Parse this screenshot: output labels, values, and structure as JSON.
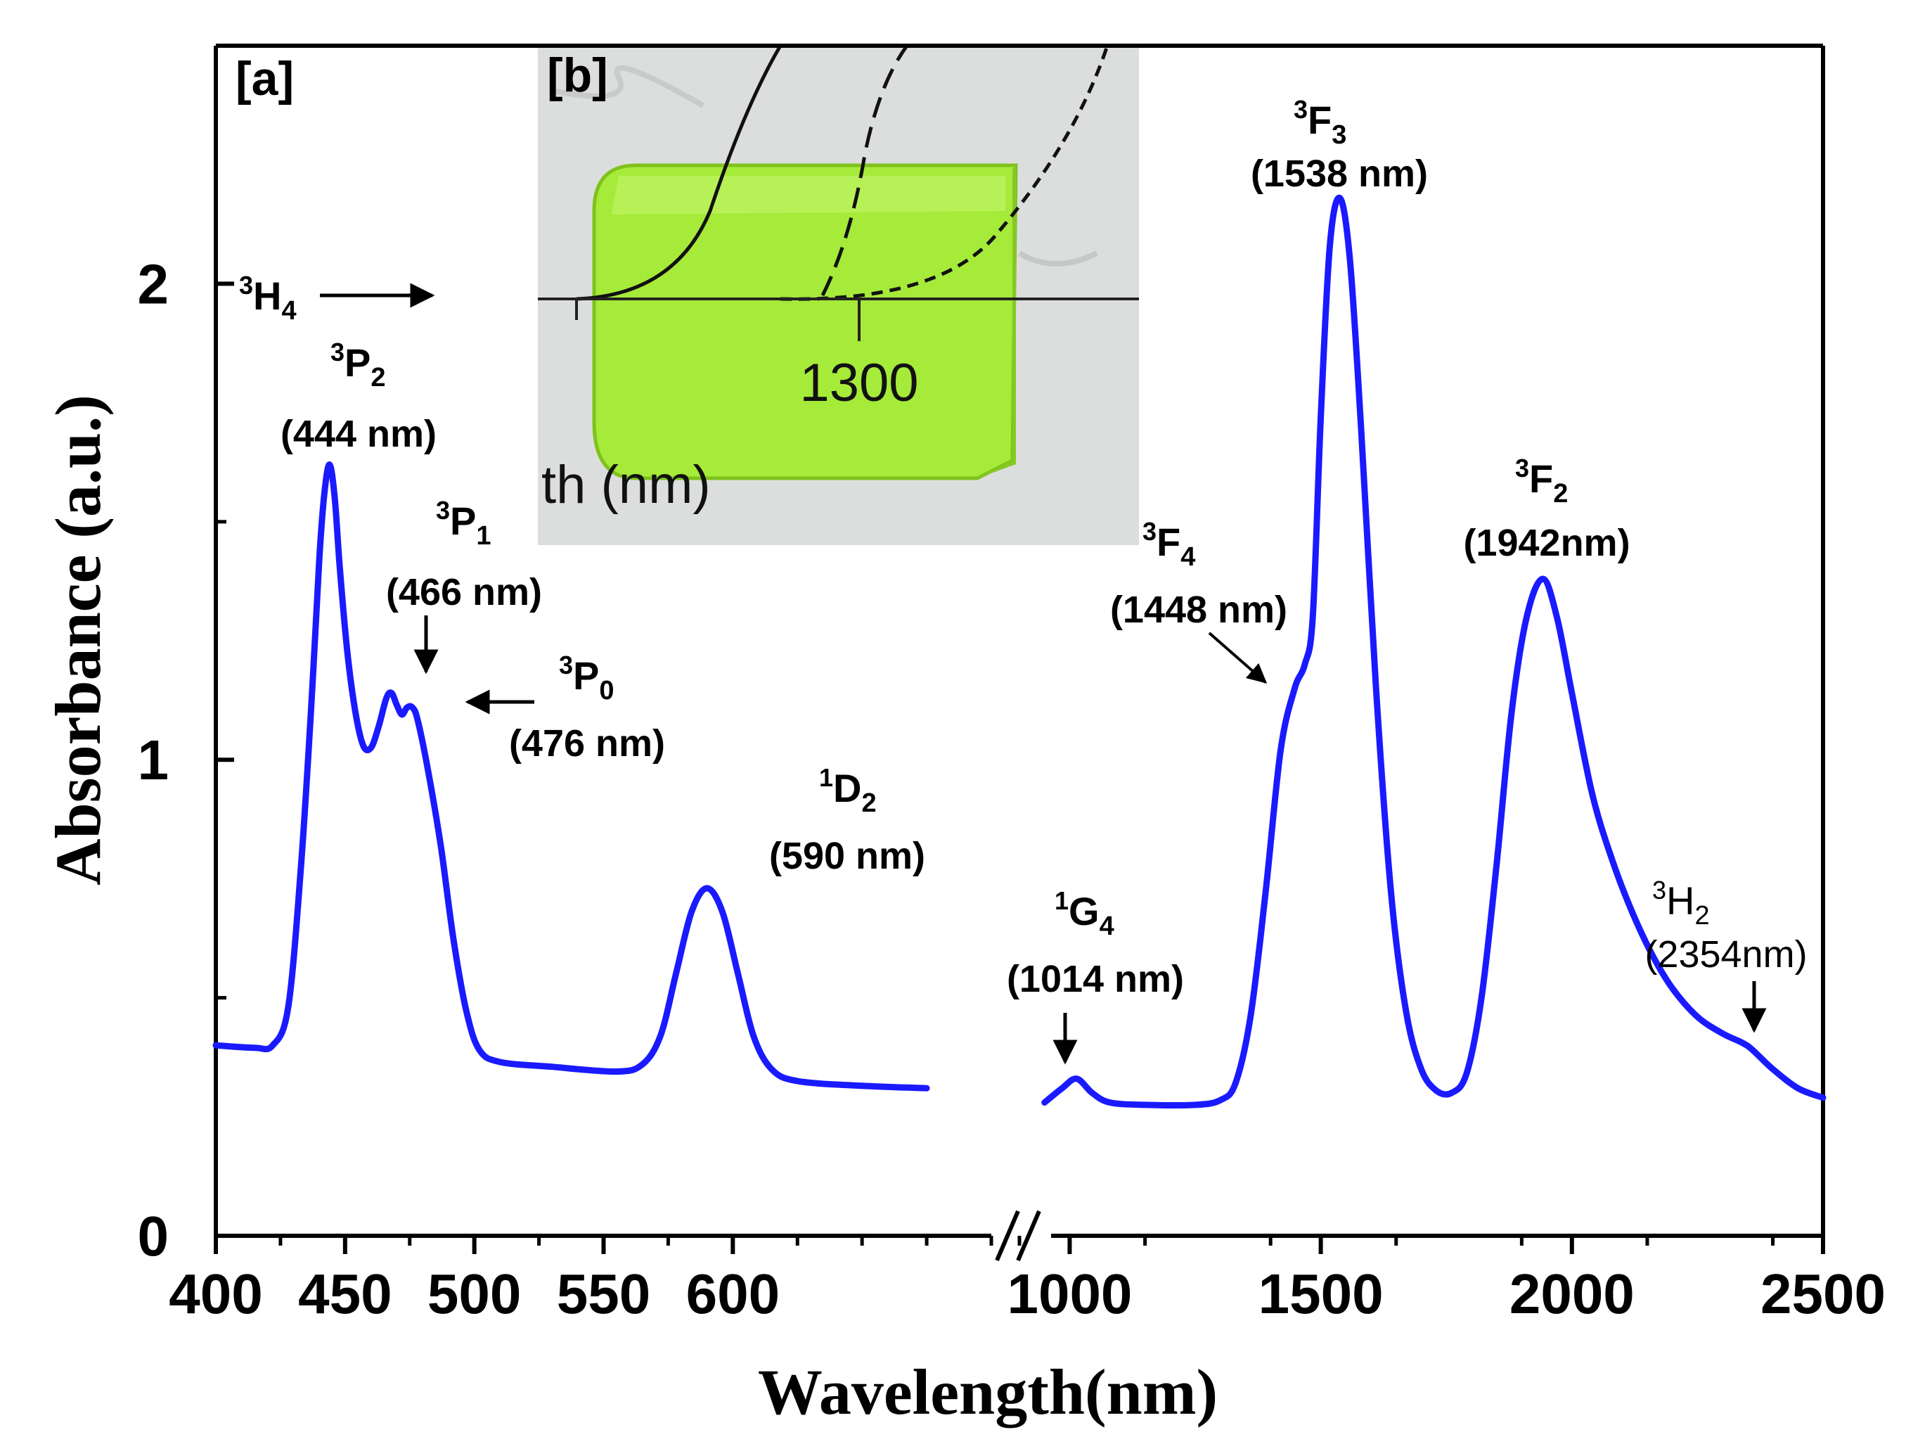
{
  "chart_data": {
    "type": "line",
    "xlabel": "Wavelength(nm)",
    "ylabel": "Absorbance (a.u.)",
    "panel_labels": [
      "[a]",
      "[b]"
    ],
    "x_segments": [
      {
        "range": [
          400,
          700
        ],
        "ticks": [
          400,
          450,
          500,
          550,
          600
        ]
      },
      {
        "range": [
          900,
          2500
        ],
        "ticks": [
          1000,
          1500,
          2000,
          2500
        ]
      }
    ],
    "ylim": [
      0,
      2.5
    ],
    "yticks": [
      0,
      1,
      2
    ],
    "series_color": "#1a1aff",
    "series": [
      {
        "name": "segment-visible",
        "points": [
          [
            400,
            0.4
          ],
          [
            415,
            0.395
          ],
          [
            422,
            0.4
          ],
          [
            428,
            0.48
          ],
          [
            433,
            0.78
          ],
          [
            437,
            1.12
          ],
          [
            440,
            1.42
          ],
          [
            442,
            1.56
          ],
          [
            444,
            1.62
          ],
          [
            446,
            1.55
          ],
          [
            448,
            1.4
          ],
          [
            451,
            1.22
          ],
          [
            454,
            1.1
          ],
          [
            457,
            1.03
          ],
          [
            460,
            1.025
          ],
          [
            463,
            1.07
          ],
          [
            466,
            1.13
          ],
          [
            468,
            1.14
          ],
          [
            470,
            1.115
          ],
          [
            472,
            1.095
          ],
          [
            474,
            1.11
          ],
          [
            476,
            1.11
          ],
          [
            478,
            1.085
          ],
          [
            482,
            0.98
          ],
          [
            487,
            0.82
          ],
          [
            492,
            0.62
          ],
          [
            497,
            0.47
          ],
          [
            502,
            0.39
          ],
          [
            510,
            0.365
          ],
          [
            530,
            0.355
          ],
          [
            555,
            0.345
          ],
          [
            565,
            0.36
          ],
          [
            572,
            0.42
          ],
          [
            578,
            0.55
          ],
          [
            584,
            0.68
          ],
          [
            590,
            0.73
          ],
          [
            596,
            0.68
          ],
          [
            602,
            0.55
          ],
          [
            608,
            0.42
          ],
          [
            615,
            0.35
          ],
          [
            625,
            0.325
          ],
          [
            650,
            0.315
          ],
          [
            675,
            0.31
          ]
        ]
      },
      {
        "name": "segment-nir",
        "points": [
          [
            950,
            0.28
          ],
          [
            985,
            0.31
          ],
          [
            1014,
            0.33
          ],
          [
            1045,
            0.3
          ],
          [
            1080,
            0.28
          ],
          [
            1150,
            0.275
          ],
          [
            1250,
            0.275
          ],
          [
            1300,
            0.285
          ],
          [
            1330,
            0.32
          ],
          [
            1360,
            0.46
          ],
          [
            1390,
            0.72
          ],
          [
            1420,
            1.02
          ],
          [
            1448,
            1.15
          ],
          [
            1468,
            1.2
          ],
          [
            1484,
            1.3
          ],
          [
            1500,
            1.72
          ],
          [
            1518,
            2.08
          ],
          [
            1538,
            2.18
          ],
          [
            1558,
            2.05
          ],
          [
            1580,
            1.7
          ],
          [
            1610,
            1.15
          ],
          [
            1640,
            0.72
          ],
          [
            1670,
            0.47
          ],
          [
            1700,
            0.35
          ],
          [
            1730,
            0.305
          ],
          [
            1760,
            0.3
          ],
          [
            1790,
            0.34
          ],
          [
            1820,
            0.5
          ],
          [
            1850,
            0.78
          ],
          [
            1880,
            1.1
          ],
          [
            1910,
            1.3
          ],
          [
            1942,
            1.38
          ],
          [
            1970,
            1.3
          ],
          [
            2000,
            1.14
          ],
          [
            2040,
            0.93
          ],
          [
            2080,
            0.79
          ],
          [
            2120,
            0.68
          ],
          [
            2160,
            0.59
          ],
          [
            2200,
            0.52
          ],
          [
            2250,
            0.46
          ],
          [
            2300,
            0.425
          ],
          [
            2340,
            0.405
          ],
          [
            2360,
            0.39
          ],
          [
            2400,
            0.35
          ],
          [
            2450,
            0.31
          ],
          [
            2500,
            0.29
          ]
        ]
      }
    ],
    "annotations": [
      {
        "level": "3H4",
        "wavelength": ""
      },
      {
        "level": "3P2",
        "wavelength": "(444 nm)"
      },
      {
        "level": "3P1",
        "wavelength": "(466 nm)"
      },
      {
        "level": "3P0",
        "wavelength": "(476 nm)"
      },
      {
        "level": "1D2",
        "wavelength": "(590 nm)"
      },
      {
        "level": "1G4",
        "wavelength": "(1014 nm)"
      },
      {
        "level": "3F4",
        "wavelength": "(1448 nm)"
      },
      {
        "level": "3F3",
        "wavelength": "(1538 nm)"
      },
      {
        "level": "3F2",
        "wavelength": "(1942nm)"
      },
      {
        "level": "3H2",
        "wavelength": "(2354nm)"
      }
    ],
    "inset": {
      "description_label": "photo of green glass sample",
      "tick_text": "1300",
      "axis_text": "th  (nm)",
      "sample_color": "#a6ea3a"
    }
  }
}
